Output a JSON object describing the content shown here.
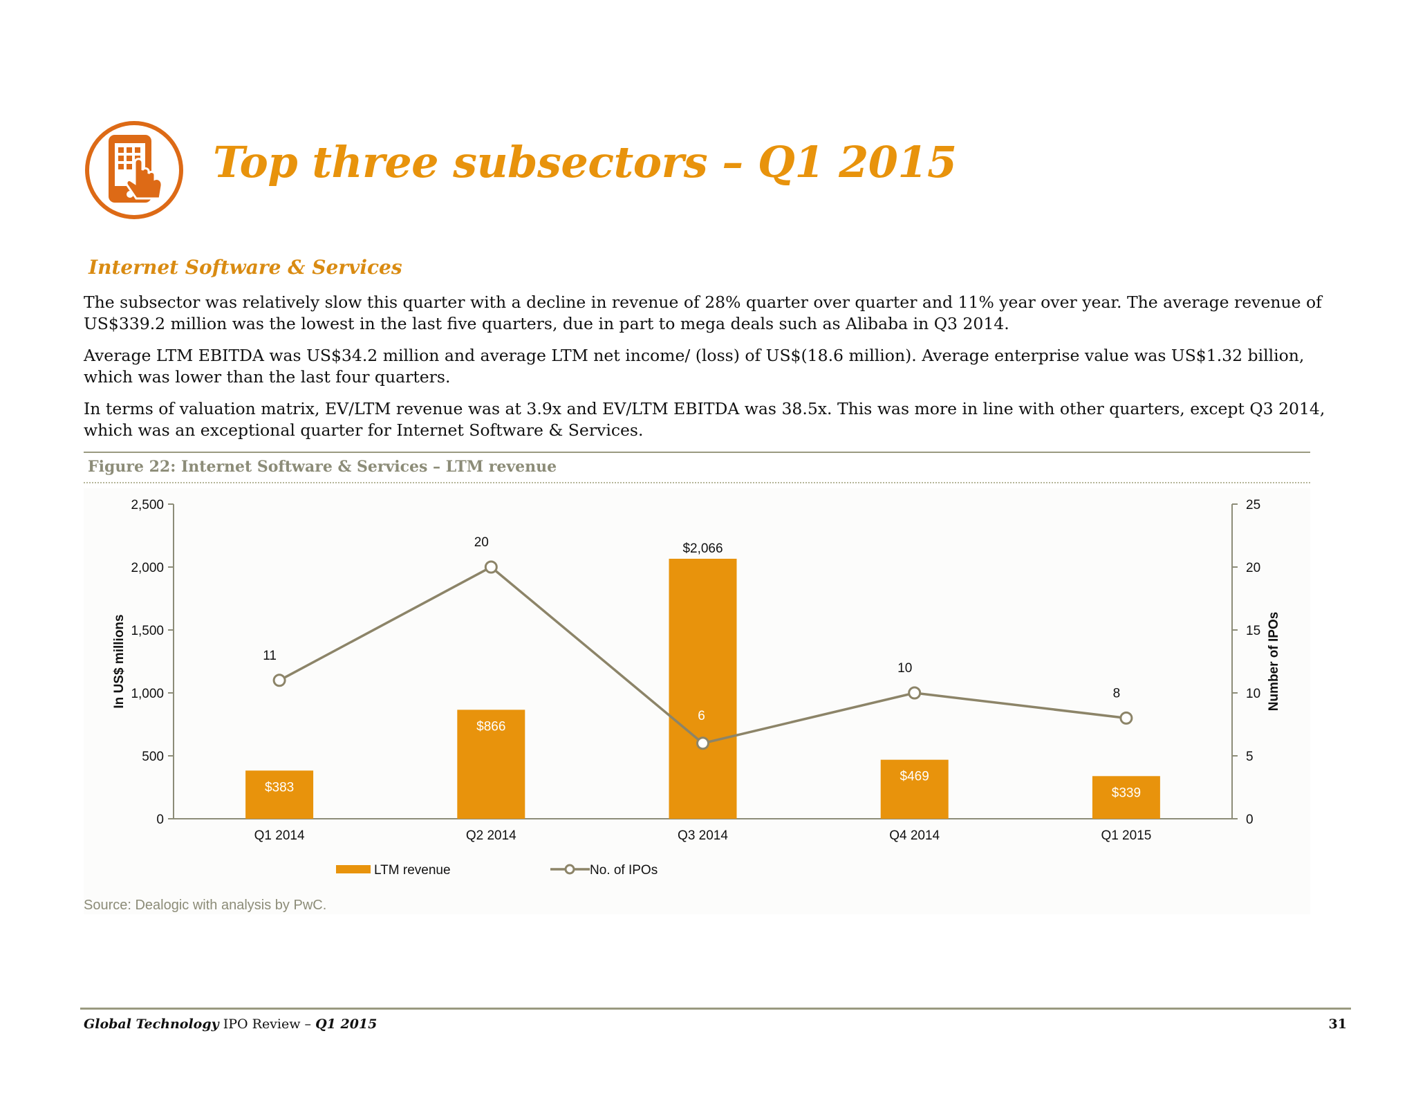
{
  "page": {
    "title": "Top three subsectors – Q1 2015",
    "subsector_title": "Internet Software & Services",
    "paragraphs": [
      "The subsector was relatively slow this quarter with a decline in revenue of 28% quarter over quarter and 11% year over year. The average revenue of US$339.2 million was the lowest in the last five quarters, due in part to mega deals such as Alibaba in Q3 2014.",
      "Average LTM EBITDA was US$34.2 million and average LTM net income/ (loss) of US$(18.6 million). Average enterprise value was US$1.32 billion, which was lower than the last four quarters.",
      "In terms of valuation matrix, EV/LTM revenue was at 3.9x and EV/LTM EBITDA was 38.5x. This was more in line with other quarters, except Q3 2014, which was an exceptional quarter for Internet Software & Services."
    ],
    "figure_caption": "Figure 22: Internet Software & Services – LTM revenue",
    "source": "Source: Dealogic with analysis by PwC.",
    "footer": {
      "publication_italic": "Global Technology",
      "publication_regular": " IPO Review – ",
      "quarter": "Q1 2015",
      "page_number": "31"
    },
    "logo_icon": "tablet-touch-icon",
    "colors": {
      "accent": "#E8930C",
      "line": "#8C8468",
      "rule": "#9A9A80"
    }
  },
  "chart_data": {
    "type": "bar",
    "categories": [
      "Q1 2014",
      "Q2 2014",
      "Q3 2014",
      "Q4 2014",
      "Q1 2015"
    ],
    "series": [
      {
        "name": "LTM revenue",
        "type": "bar",
        "axis": "left",
        "values": [
          383,
          866,
          2066,
          469,
          339
        ],
        "labels": [
          "$383",
          "$866",
          "$2,066",
          "$469",
          "$339"
        ],
        "color": "#E8930C"
      },
      {
        "name": "No. of IPOs",
        "type": "line",
        "axis": "right",
        "values": [
          11,
          20,
          6,
          10,
          8
        ],
        "labels": [
          "11",
          "20",
          "6",
          "10",
          "8"
        ],
        "color": "#8C8468"
      }
    ],
    "ylabel": "In US$ millions",
    "y2label": "Number of IPOs",
    "ylim": [
      0,
      2500
    ],
    "y2lim": [
      0,
      25
    ],
    "yticks": [
      "0",
      "500",
      "1,000",
      "1,500",
      "2,000",
      "2,500"
    ],
    "y2ticks": [
      "0",
      "5",
      "10",
      "15",
      "20",
      "25"
    ],
    "legend_position": "bottom",
    "grid": false
  }
}
